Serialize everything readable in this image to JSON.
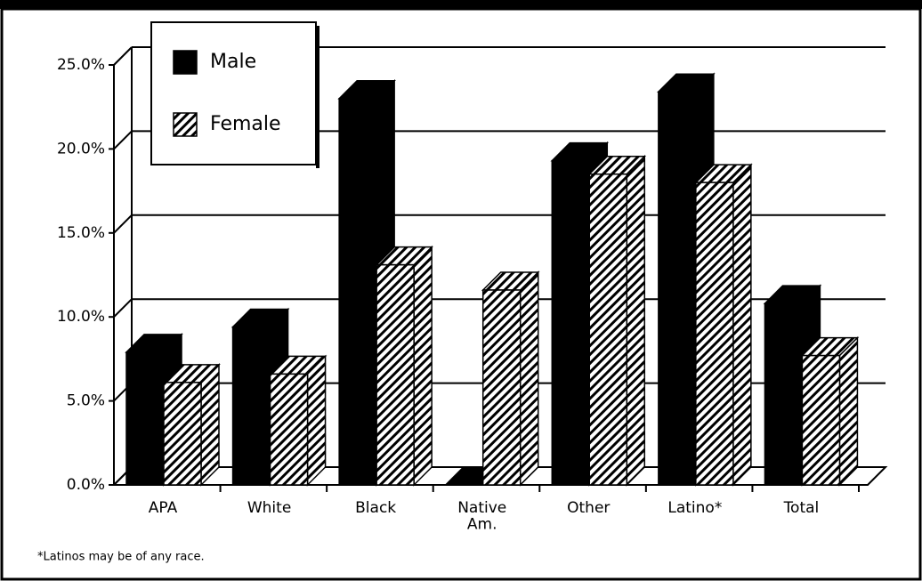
{
  "chart_data": {
    "type": "bar3d",
    "categories": [
      "APA",
      "White",
      "Black",
      "Native\nAm.",
      "Other",
      "Latino*",
      "Total"
    ],
    "series": [
      {
        "name": "Male",
        "color": "#000000",
        "values": [
          7.9,
          9.4,
          23.0,
          0,
          19.3,
          23.4,
          10.8
        ]
      },
      {
        "name": "Female",
        "color": "hatch",
        "values": [
          6.1,
          6.6,
          13.1,
          11.6,
          18.5,
          18.0,
          7.7
        ]
      }
    ],
    "ylim": [
      0,
      25
    ],
    "yticks": [
      {
        "value": 0,
        "label": "0.0%"
      },
      {
        "value": 5,
        "label": "5.0%"
      },
      {
        "value": 10,
        "label": "10.0%"
      },
      {
        "value": 15,
        "label": "15.0%"
      },
      {
        "value": 20,
        "label": "20.0%"
      },
      {
        "value": 25,
        "label": "25.0%"
      }
    ],
    "grid": true,
    "footnote": "*Latinos may be of any race."
  }
}
